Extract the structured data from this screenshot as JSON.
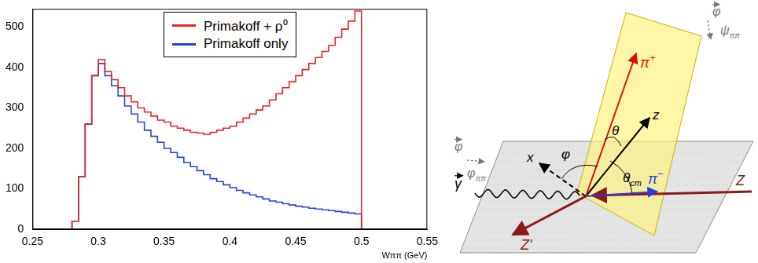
{
  "chart_data": {
    "type": "line",
    "x_label": "Wππ (GeV)",
    "x": [
      0.275,
      0.28,
      0.285,
      0.29,
      0.295,
      0.3,
      0.305,
      0.31,
      0.315,
      0.32,
      0.325,
      0.33,
      0.335,
      0.34,
      0.345,
      0.35,
      0.355,
      0.36,
      0.365,
      0.37,
      0.375,
      0.38,
      0.385,
      0.39,
      0.395,
      0.4,
      0.405,
      0.41,
      0.415,
      0.42,
      0.425,
      0.43,
      0.435,
      0.44,
      0.445,
      0.45,
      0.455,
      0.46,
      0.465,
      0.47,
      0.475,
      0.48,
      0.485,
      0.49,
      0.495,
      0.5,
      0.505
    ],
    "series": [
      {
        "name": "Primakoff + ρ⁰",
        "color": "#ee2222",
        "line_style": "steps",
        "values": [
          0,
          20,
          130,
          260,
          380,
          420,
          390,
          370,
          350,
          330,
          315,
          300,
          290,
          280,
          270,
          265,
          255,
          250,
          245,
          240,
          238,
          235,
          240,
          245,
          250,
          255,
          265,
          275,
          285,
          295,
          305,
          320,
          335,
          350,
          365,
          380,
          395,
          410,
          425,
          440,
          455,
          475,
          495,
          515,
          540,
          0,
          0
        ]
      },
      {
        "name": "Primakoff only",
        "color": "#2244dd",
        "line_style": "steps",
        "values": [
          0,
          20,
          130,
          260,
          380,
          410,
          380,
          355,
          330,
          305,
          285,
          265,
          245,
          230,
          215,
          200,
          190,
          178,
          165,
          155,
          145,
          135,
          125,
          118,
          110,
          103,
          96,
          90,
          85,
          80,
          75,
          70,
          67,
          63,
          60,
          57,
          55,
          52,
          50,
          48,
          46,
          44,
          42,
          40,
          38,
          0,
          0
        ]
      }
    ],
    "xlim": [
      0.25,
      0.55
    ],
    "xticks": [
      0.25,
      0.3,
      0.35,
      0.4,
      0.45,
      0.5,
      0.55
    ],
    "ylim": [
      0,
      545
    ],
    "yticks": [
      0,
      100,
      200,
      300,
      400,
      500
    ],
    "grid": false,
    "legend": "upper center"
  },
  "diagram": {
    "labels": {
      "pi_plus": {
        "base": "π",
        "sup": "+"
      },
      "pi_minus": {
        "base": "π",
        "sup": "−"
      },
      "Z": {
        "base": "Z"
      },
      "Z_prime": {
        "base": "Z'"
      },
      "x": {
        "base": "x"
      },
      "z": {
        "base": "z"
      },
      "phi": {
        "base": "φ"
      },
      "theta": {
        "base": "θ"
      },
      "theta_cm": {
        "base": "θ",
        "sub": "cm"
      },
      "gamma": {
        "base": "γ",
        "vector": true
      },
      "phi_vec_left": {
        "base": "φ",
        "vector": true
      },
      "phi_pipi": {
        "base": "φ",
        "sub": "ππ"
      },
      "phi_vec_right": {
        "base": "φ",
        "vector": true
      },
      "psi_pipi": {
        "base": "ψ",
        "sub": "ππ"
      }
    }
  }
}
